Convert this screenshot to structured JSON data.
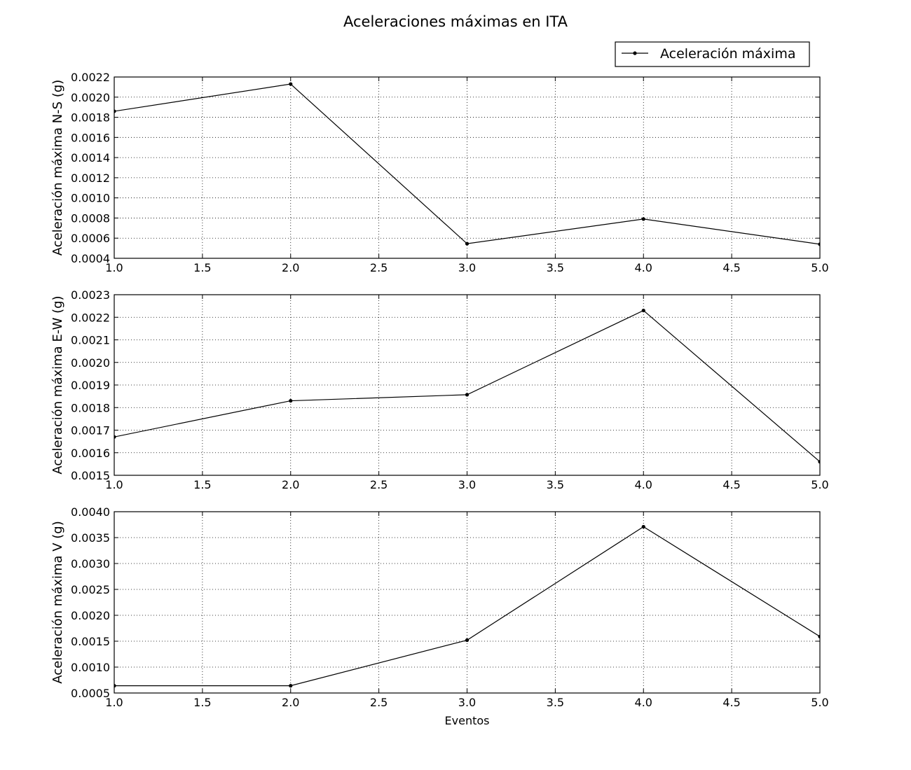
{
  "chart_data": {
    "title": "Aceleraciones máximas en ITA",
    "legend": {
      "label": "Aceleración máxima",
      "placement": "upper-right"
    },
    "grid": true,
    "xlabel": "Eventos",
    "subplots": [
      {
        "type": "line",
        "ylabel": "Aceleración máxima N-S (g)",
        "xlim": [
          1.0,
          5.0
        ],
        "ylim": [
          0.0004,
          0.0022
        ],
        "x_ticks": [
          "1.0",
          "1.5",
          "2.0",
          "2.5",
          "3.0",
          "3.5",
          "4.0",
          "4.5",
          "5.0"
        ],
        "y_ticks": [
          "0.0004",
          "0.0006",
          "0.0008",
          "0.0010",
          "0.0012",
          "0.0014",
          "0.0016",
          "0.0018",
          "0.0020",
          "0.0022"
        ],
        "series": [
          {
            "name": "Aceleración máxima",
            "x": [
              1,
              2,
              3,
              4,
              5
            ],
            "y": [
              0.00186,
              0.00213,
              0.000545,
              0.00079,
              0.00054
            ]
          }
        ],
        "show_xlabel": false
      },
      {
        "type": "line",
        "ylabel": "Aceleración máxima E-W (g)",
        "xlim": [
          1.0,
          5.0
        ],
        "ylim": [
          0.0015,
          0.0023
        ],
        "x_ticks": [
          "1.0",
          "1.5",
          "2.0",
          "2.5",
          "3.0",
          "3.5",
          "4.0",
          "4.5",
          "5.0"
        ],
        "y_ticks": [
          "0.0015",
          "0.0016",
          "0.0017",
          "0.0018",
          "0.0019",
          "0.0020",
          "0.0021",
          "0.0022",
          "0.0023"
        ],
        "series": [
          {
            "name": "Aceleración máxima",
            "x": [
              1,
              2,
              3,
              4,
              5
            ],
            "y": [
              0.00167,
              0.00183,
              0.001857,
              0.00223,
              0.00156
            ]
          }
        ],
        "show_xlabel": false
      },
      {
        "type": "line",
        "ylabel": "Aceleración máxima V (g)",
        "xlim": [
          1.0,
          5.0
        ],
        "ylim": [
          0.0005,
          0.004
        ],
        "x_ticks": [
          "1.0",
          "1.5",
          "2.0",
          "2.5",
          "3.0",
          "3.5",
          "4.0",
          "4.5",
          "5.0"
        ],
        "y_ticks": [
          "0.0005",
          "0.0010",
          "0.0015",
          "0.0020",
          "0.0025",
          "0.0030",
          "0.0035",
          "0.0040"
        ],
        "series": [
          {
            "name": "Aceleración máxima",
            "x": [
              1,
              2,
              3,
              4,
              5
            ],
            "y": [
              0.00064,
              0.00064,
              0.00152,
              0.00371,
              0.00159
            ]
          }
        ],
        "show_xlabel": true
      }
    ]
  }
}
